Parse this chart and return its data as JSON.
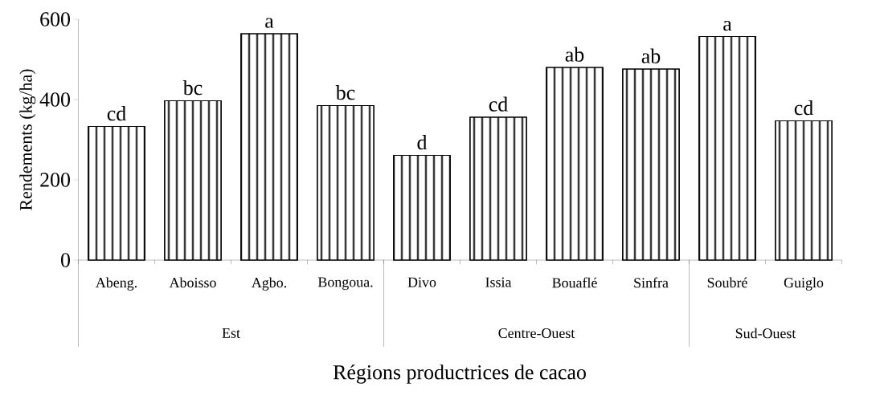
{
  "chart_data": {
    "type": "bar",
    "xlabel": "Régions productrices de cacao",
    "ylabel": "Rendements (kg/ha)",
    "categories": [
      "Abeng.",
      "Aboisso",
      "Agbo.",
      "Bongoua.",
      "Divo",
      "Issia",
      "Bouaflé",
      "Sinfra",
      "Soubré",
      "Guiglo"
    ],
    "values": [
      333,
      397,
      564,
      385,
      261,
      356,
      480,
      476,
      557,
      347
    ],
    "value_labels": [
      "cd",
      "bc",
      "a",
      "bc",
      "d",
      "cd",
      "ab",
      "ab",
      "a",
      "cd"
    ],
    "color": "#000000",
    "ylim": [
      0,
      600
    ],
    "yticks": [
      0,
      200,
      400,
      600
    ],
    "annotations": [
      "Est",
      "Centre-Ouest",
      "Sud-Ouest"
    ],
    "grid": false
  }
}
